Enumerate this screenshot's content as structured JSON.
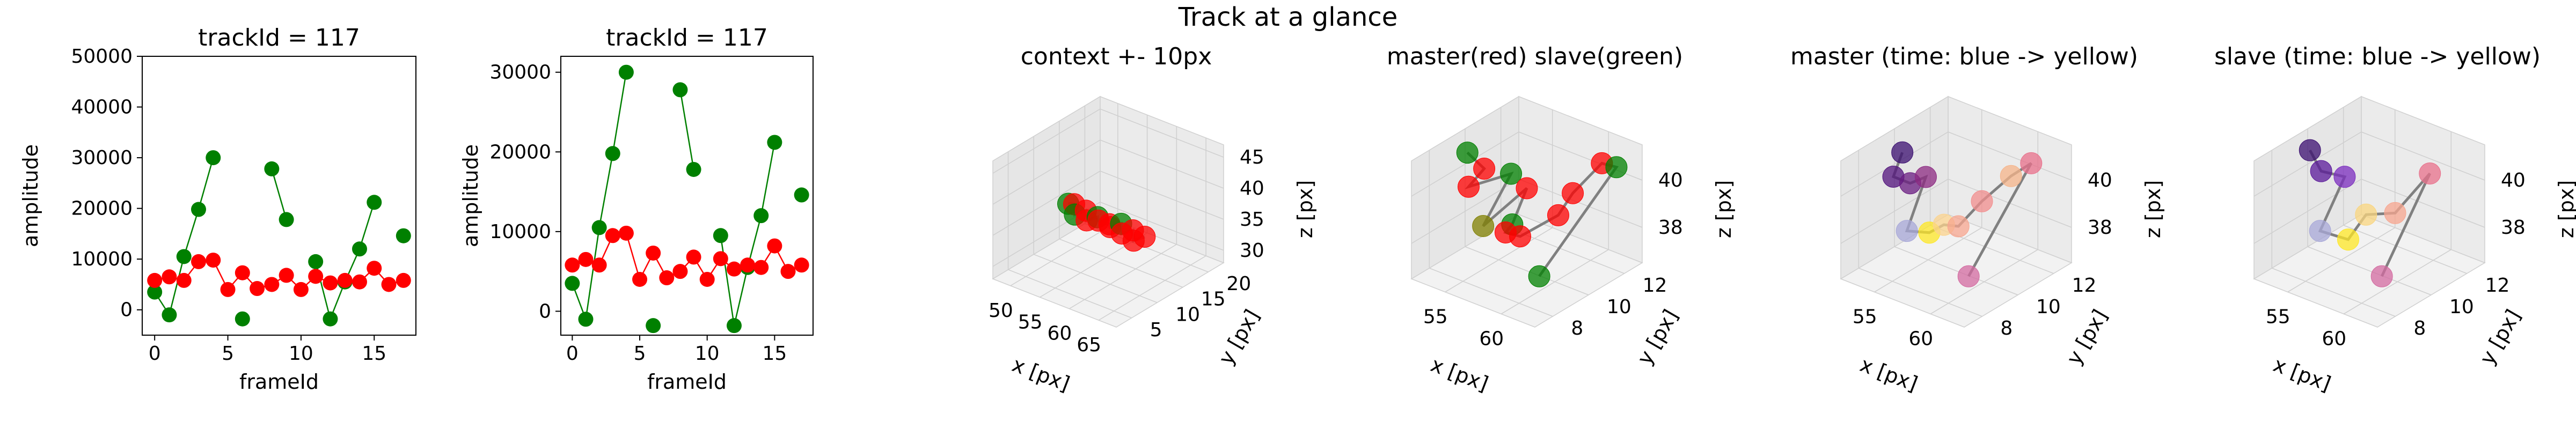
{
  "figure": {
    "title": "Track at a glance"
  },
  "colors": {
    "green": "#008000",
    "red": "#ff0000",
    "gray": "#808080"
  },
  "chart_data": [
    {
      "type": "line",
      "title": "trackId = 117",
      "xlabel": "frameId",
      "ylabel": "amplitude",
      "xlim": [
        -0.85,
        17.85
      ],
      "ylim": [
        -5000,
        50000
      ],
      "xticks": [
        0,
        5,
        10,
        15
      ],
      "yticks": [
        0,
        10000,
        20000,
        30000,
        40000,
        50000
      ],
      "x": [
        0,
        1,
        2,
        3,
        4,
        5,
        6,
        7,
        8,
        9,
        10,
        11,
        12,
        13,
        14,
        15,
        16,
        17
      ],
      "series": [
        {
          "color": "#008000",
          "values": [
            3500,
            -1000,
            10500,
            19800,
            30000,
            null,
            -1800,
            null,
            27800,
            17800,
            null,
            9500,
            -1800,
            5500,
            12000,
            21200,
            null,
            14600
          ]
        },
        {
          "color": "#ff0000",
          "values": [
            5800,
            6500,
            5800,
            9500,
            9800,
            4000,
            7300,
            4200,
            5000,
            6800,
            4000,
            6600,
            5300,
            5800,
            5500,
            8200,
            5000,
            5800
          ]
        }
      ]
    },
    {
      "type": "line",
      "title": "trackId = 117",
      "xlabel": "frameId",
      "ylabel": "amplitude",
      "xlim": [
        -0.85,
        17.85
      ],
      "ylim": [
        -3000,
        32000
      ],
      "xticks": [
        0,
        5,
        10,
        15
      ],
      "yticks": [
        0,
        10000,
        20000,
        30000
      ],
      "x": [
        0,
        1,
        2,
        3,
        4,
        5,
        6,
        7,
        8,
        9,
        10,
        11,
        12,
        13,
        14,
        15,
        16,
        17
      ],
      "series": [
        {
          "color": "#008000",
          "values": [
            3500,
            -1000,
            10500,
            19800,
            30000,
            null,
            -1800,
            null,
            27800,
            17800,
            null,
            9500,
            -1800,
            5500,
            12000,
            21200,
            null,
            14600
          ]
        },
        {
          "color": "#ff0000",
          "values": [
            5800,
            6500,
            5800,
            9500,
            9800,
            4000,
            7300,
            4200,
            5000,
            6800,
            4000,
            6600,
            5300,
            5800,
            5500,
            8200,
            5000,
            5800
          ]
        }
      ]
    },
    {
      "type": "scatter",
      "title": "context +- 10px",
      "xlabel": "x [px]",
      "ylabel": "y [px]",
      "zlabel": "z [px]",
      "xticks": [
        50,
        55,
        60,
        65
      ],
      "yticks": [
        5,
        10,
        15,
        20
      ],
      "zticks": [
        30,
        35,
        40,
        45
      ],
      "xlim": [
        47,
        68
      ],
      "ylim": [
        2,
        23
      ],
      "zlim": [
        28,
        47
      ],
      "points": [
        {
          "x": 52,
          "y": 11,
          "z": 37.5,
          "color": "#008000"
        },
        {
          "x": 53,
          "y": 11,
          "z": 37.8,
          "color": "#ff0000"
        },
        {
          "x": 54,
          "y": 10,
          "z": 37.0,
          "color": "#008000"
        },
        {
          "x": 55,
          "y": 11,
          "z": 37.5,
          "color": "#ff0000"
        },
        {
          "x": 56,
          "y": 10,
          "z": 36.8,
          "color": "#ff0000"
        },
        {
          "x": 57,
          "y": 11,
          "z": 37.2,
          "color": "#008000"
        },
        {
          "x": 58,
          "y": 10,
          "z": 37.5,
          "color": "#ff0000"
        },
        {
          "x": 59,
          "y": 11,
          "z": 36.8,
          "color": "#ff0000"
        },
        {
          "x": 60,
          "y": 10,
          "z": 37.2,
          "color": "#ff0000"
        },
        {
          "x": 61,
          "y": 11,
          "z": 37.6,
          "color": "#008000"
        },
        {
          "x": 62,
          "y": 10,
          "z": 36.9,
          "color": "#ff0000"
        },
        {
          "x": 63,
          "y": 11,
          "z": 37.3,
          "color": "#ff0000"
        },
        {
          "x": 64,
          "y": 10,
          "z": 36.5,
          "color": "#ff0000"
        },
        {
          "x": 65,
          "y": 11,
          "z": 37.0,
          "color": "#ff0000"
        }
      ]
    },
    {
      "type": "scatter",
      "title": "master(red) slave(green)",
      "xlabel": "x [px]",
      "ylabel": "y [px]",
      "zlabel": "z [px]",
      "xticks": [
        55,
        60
      ],
      "yticks": [
        8,
        10,
        12
      ],
      "zticks": [
        38,
        40
      ],
      "xlim": [
        52,
        63
      ],
      "ylim": [
        7,
        13
      ],
      "zlim": [
        36.5,
        41.5
      ],
      "points": [
        {
          "x": 53.0,
          "y": 9.5,
          "z": 40.9,
          "color": "#008000"
        },
        {
          "x": 54.5,
          "y": 9.5,
          "z": 40.5,
          "color": "#ff0000"
        },
        {
          "x": 55.5,
          "y": 8.0,
          "z": 40.6,
          "color": "#ff0000"
        },
        {
          "x": 54.5,
          "y": 11.0,
          "z": 39.6,
          "color": "#008000"
        },
        {
          "x": 56.0,
          "y": 8.5,
          "z": 38.8,
          "color": "#808000"
        },
        {
          "x": 57.5,
          "y": 10.0,
          "z": 40.0,
          "color": "#ff0000"
        },
        {
          "x": 57.0,
          "y": 9.5,
          "z": 38.6,
          "color": "#008000"
        },
        {
          "x": 58.0,
          "y": 8.5,
          "z": 38.9,
          "color": "#ff0000"
        },
        {
          "x": 58.5,
          "y": 9.0,
          "z": 38.6,
          "color": "#ff0000"
        },
        {
          "x": 59.5,
          "y": 10.5,
          "z": 39.0,
          "color": "#ff0000"
        },
        {
          "x": 60.0,
          "y": 11.0,
          "z": 39.8,
          "color": "#ff0000"
        },
        {
          "x": 61.0,
          "y": 12.0,
          "z": 40.8,
          "color": "#ff0000"
        },
        {
          "x": 61.5,
          "y": 12.5,
          "z": 40.5,
          "color": "#008000"
        },
        {
          "x": 61.0,
          "y": 8.5,
          "z": 37.6,
          "color": "#008000"
        }
      ]
    },
    {
      "type": "scatter",
      "title": "master (time: blue -> yellow)",
      "xlabel": "x [px]",
      "ylabel": "y [px]",
      "zlabel": "z [px]",
      "xticks": [
        55,
        60
      ],
      "yticks": [
        8,
        10,
        12
      ],
      "zticks": [
        38,
        40
      ],
      "xlim": [
        52,
        63
      ],
      "ylim": [
        7,
        13
      ],
      "zlim": [
        36.5,
        41.5
      ],
      "points": [
        {
          "x": 53.5,
          "y": 9.5,
          "z": 41.0,
          "color": "#3b0f70"
        },
        {
          "x": 53.5,
          "y": 9.0,
          "z": 40.2,
          "color": "#51127c"
        },
        {
          "x": 55.0,
          "y": 9.0,
          "z": 40.2,
          "color": "#6a1c81"
        },
        {
          "x": 54.0,
          "y": 10.5,
          "z": 39.6,
          "color": "#8c2981"
        },
        {
          "x": 55.5,
          "y": 8.5,
          "z": 38.5,
          "color": "#a8a8d8"
        },
        {
          "x": 57.5,
          "y": 8.5,
          "z": 38.8,
          "color": "#fde725"
        },
        {
          "x": 58.0,
          "y": 9.0,
          "z": 39.0,
          "color": "#fbd38d"
        },
        {
          "x": 58.5,
          "y": 9.5,
          "z": 38.8,
          "color": "#f7a58f"
        },
        {
          "x": 59.0,
          "y": 10.5,
          "z": 39.5,
          "color": "#f28e8e"
        },
        {
          "x": 60.0,
          "y": 11.5,
          "z": 40.3,
          "color": "#f5b48a"
        },
        {
          "x": 61.0,
          "y": 12.0,
          "z": 40.8,
          "color": "#e8708b"
        },
        {
          "x": 61.0,
          "y": 8.5,
          "z": 37.6,
          "color": "#d36aa0"
        }
      ]
    },
    {
      "type": "scatter",
      "title": "slave (time: blue -> yellow)",
      "xlabel": "x [px]",
      "ylabel": "y [px]",
      "zlabel": "z [px]",
      "xticks": [
        55,
        60
      ],
      "yticks": [
        8,
        10,
        12
      ],
      "zticks": [
        38,
        40
      ],
      "xlim": [
        52,
        63
      ],
      "ylim": [
        7,
        13
      ],
      "zlim": [
        36.5,
        41.5
      ],
      "points": [
        {
          "x": 53.0,
          "y": 9.5,
          "z": 41.0,
          "color": "#3b0f70"
        },
        {
          "x": 54.0,
          "y": 9.5,
          "z": 40.3,
          "color": "#5a189a"
        },
        {
          "x": 54.5,
          "y": 10.5,
          "z": 39.7,
          "color": "#7b2cbf"
        },
        {
          "x": 55.5,
          "y": 8.5,
          "z": 38.5,
          "color": "#a8a8d8"
        },
        {
          "x": 58.0,
          "y": 8.5,
          "z": 38.6,
          "color": "#fde725"
        },
        {
          "x": 58.0,
          "y": 9.5,
          "z": 39.2,
          "color": "#f9d57f"
        },
        {
          "x": 59.0,
          "y": 10.5,
          "z": 39.0,
          "color": "#f7a58f"
        },
        {
          "x": 60.5,
          "y": 11.5,
          "z": 40.5,
          "color": "#e8708b"
        },
        {
          "x": 61.0,
          "y": 8.5,
          "z": 37.6,
          "color": "#d36aa0"
        }
      ]
    }
  ]
}
